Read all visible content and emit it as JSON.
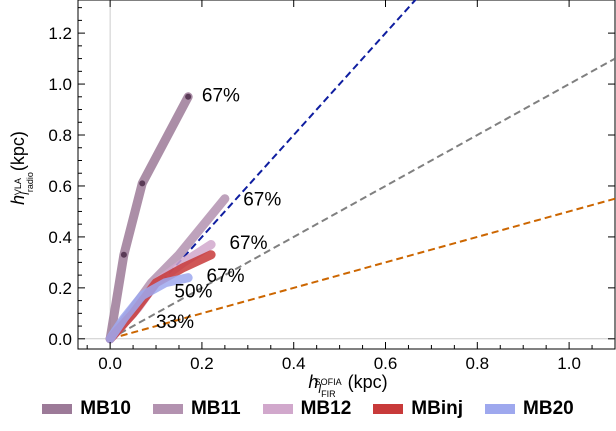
{
  "chart_data": {
    "type": "line",
    "xlabel": "h",
    "xlabel_sub": "l",
    "xlabel_subsub": "FIR",
    "xlabel_sup": "SOFIA",
    "xlabel_unit": "(kpc)",
    "ylabel": "h",
    "ylabel_sub": "l",
    "ylabel_subsub": "radio",
    "ylabel_sup": "VLA",
    "ylabel_unit": "(kpc)",
    "xlim": [
      -0.07,
      1.1
    ],
    "ylim": [
      -0.04,
      1.33
    ],
    "xticks": [
      "0.0",
      "0.2",
      "0.4",
      "0.6",
      "0.8",
      "1.0"
    ],
    "xtick_values": [
      0.0,
      0.2,
      0.4,
      0.6,
      0.8,
      1.0
    ],
    "yticks": [
      "0.0",
      "0.2",
      "0.4",
      "0.6",
      "0.8",
      "1.0",
      "1.2"
    ],
    "ytick_values": [
      0.0,
      0.2,
      0.4,
      0.6,
      0.8,
      1.0,
      1.2
    ],
    "reference_lines": [
      {
        "slope": 2.0,
        "color": "#0f1ea0"
      },
      {
        "slope": 1.0,
        "color": "#808080"
      },
      {
        "slope": 0.5,
        "color": "#cc6600"
      }
    ],
    "series": [
      {
        "name": "MB10",
        "color": "#9c7a98",
        "x": [
          0.0,
          0.03,
          0.07,
          0.17
        ],
        "y": [
          0.0,
          0.33,
          0.61,
          0.95
        ],
        "markers": true
      },
      {
        "name": "MB11",
        "color": "#b392b0",
        "x": [
          0.0,
          0.05,
          0.09,
          0.15,
          0.25
        ],
        "y": [
          0.0,
          0.12,
          0.22,
          0.33,
          0.55
        ],
        "markers": false
      },
      {
        "name": "MB12",
        "color": "#d1a8cc",
        "x": [
          0.0,
          0.06,
          0.1,
          0.16,
          0.22
        ],
        "y": [
          0.0,
          0.12,
          0.22,
          0.3,
          0.37
        ],
        "markers": false
      },
      {
        "name": "MBinj",
        "color": "#c83a3a",
        "x": [
          0.0,
          0.05,
          0.1,
          0.16,
          0.22
        ],
        "y": [
          0.0,
          0.1,
          0.22,
          0.28,
          0.33
        ],
        "markers": false
      },
      {
        "name": "MB20",
        "color": "#9ea8ee",
        "x": [
          0.0,
          0.03,
          0.07,
          0.12,
          0.17
        ],
        "y": [
          0.0,
          0.08,
          0.17,
          0.22,
          0.24
        ],
        "markers": false
      }
    ],
    "annotations": [
      {
        "text": "67%",
        "x": 0.2,
        "y": 0.96
      },
      {
        "text": "67%",
        "x": 0.29,
        "y": 0.55
      },
      {
        "text": "67%",
        "x": 0.26,
        "y": 0.38
      },
      {
        "text": "67%",
        "x": 0.21,
        "y": 0.25
      },
      {
        "text": "50%",
        "x": 0.14,
        "y": 0.19
      },
      {
        "text": "33%",
        "x": 0.1,
        "y": 0.07
      }
    ]
  }
}
